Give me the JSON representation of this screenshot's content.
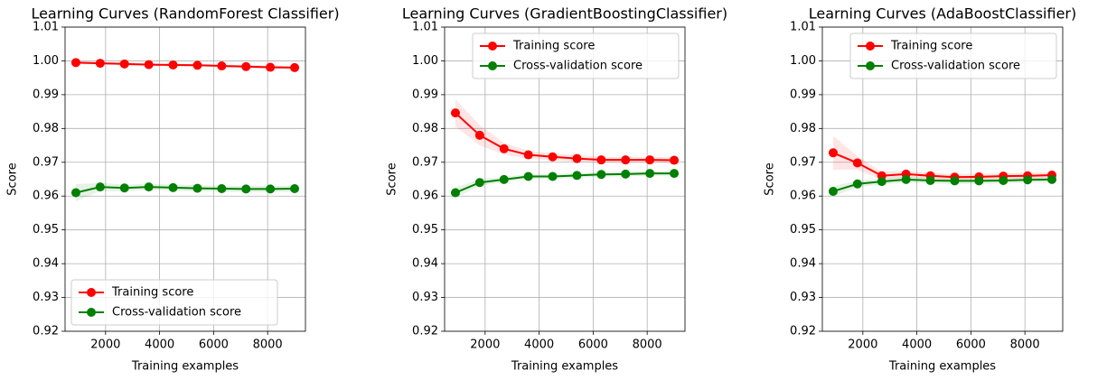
{
  "chart_data": [
    {
      "type": "line",
      "title": "Learning Curves (RandomForest Classifier)",
      "xlabel": "Training examples",
      "ylabel": "Score",
      "x": [
        900,
        1800,
        2700,
        3600,
        4500,
        5400,
        6300,
        7200,
        8100,
        9000
      ],
      "series": [
        {
          "name": "Training score",
          "color": "#ff0000",
          "values": [
            0.9995,
            0.9993,
            0.9991,
            0.9989,
            0.9988,
            0.9987,
            0.9985,
            0.9983,
            0.9981,
            0.998
          ],
          "errors": [
            0.0004,
            0.0004,
            0.0004,
            0.0004,
            0.0004,
            0.0004,
            0.0004,
            0.0005,
            0.0005,
            0.0005
          ]
        },
        {
          "name": "Cross-validation score",
          "color": "#008000",
          "values": [
            0.961,
            0.9627,
            0.9624,
            0.9627,
            0.9625,
            0.9623,
            0.9622,
            0.9621,
            0.9621,
            0.9622
          ],
          "errors": [
            0.0025,
            0.0012,
            0.001,
            0.0009,
            0.0009,
            0.0009,
            0.0009,
            0.0009,
            0.0009,
            0.0009
          ]
        }
      ],
      "xlim": [
        500,
        9400
      ],
      "ylim": [
        0.92,
        1.01
      ],
      "xticks": [
        2000,
        4000,
        6000,
        8000
      ],
      "yticks": [
        0.92,
        0.93,
        0.94,
        0.95,
        0.96,
        0.97,
        0.98,
        0.99,
        {
          "value": 1,
          "label": "1.00"
        },
        1.01
      ],
      "grid": true,
      "legend": "lower left"
    },
    {
      "type": "line",
      "title": "Learning Curves (GradientBoostingClassifier)",
      "xlabel": "Training examples",
      "ylabel": "Score",
      "x": [
        900,
        1800,
        2700,
        3600,
        4500,
        5400,
        6300,
        7200,
        8100,
        9000
      ],
      "series": [
        {
          "name": "Training score",
          "color": "#ff0000",
          "values": [
            0.9846,
            0.978,
            0.974,
            0.9722,
            0.9716,
            0.9711,
            0.9707,
            0.9707,
            0.9707,
            0.9706
          ],
          "errors": [
            0.004,
            0.003,
            0.0017,
            0.0012,
            0.001,
            0.001,
            0.0009,
            0.0009,
            0.0009,
            0.0009
          ]
        },
        {
          "name": "Cross-validation score",
          "color": "#008000",
          "values": [
            0.961,
            0.964,
            0.9649,
            0.9658,
            0.9658,
            0.9661,
            0.9664,
            0.9665,
            0.9667,
            0.9667
          ],
          "errors": [
            0.0015,
            0.001,
            0.0008,
            0.0007,
            0.0007,
            0.0007,
            0.0007,
            0.0007,
            0.0007,
            0.0007
          ]
        }
      ],
      "xlim": [
        500,
        9400
      ],
      "ylim": [
        0.92,
        1.01
      ],
      "xticks": [
        2000,
        4000,
        6000,
        8000
      ],
      "yticks": [
        0.92,
        0.93,
        0.94,
        0.95,
        0.96,
        0.97,
        0.98,
        0.99,
        {
          "value": 1,
          "label": "1.00"
        },
        1.01
      ],
      "grid": true,
      "legend": "upper right"
    },
    {
      "type": "line",
      "title": "Learning Curves (AdaBoostClassifier)",
      "xlabel": "Training examples",
      "ylabel": "Score",
      "x": [
        900,
        1800,
        2700,
        3600,
        4500,
        5400,
        6300,
        7200,
        8100,
        9000
      ],
      "series": [
        {
          "name": "Training score",
          "color": "#ff0000",
          "values": [
            0.9728,
            0.9698,
            0.966,
            0.9665,
            0.966,
            0.9656,
            0.9657,
            0.9659,
            0.966,
            0.9662
          ],
          "errors": [
            0.005,
            0.002,
            0.0012,
            0.001,
            0.001,
            0.0009,
            0.0009,
            0.0009,
            0.0009,
            0.0009
          ]
        },
        {
          "name": "Cross-validation score",
          "color": "#008000",
          "values": [
            0.9614,
            0.9636,
            0.9643,
            0.9649,
            0.9646,
            0.9645,
            0.9645,
            0.9646,
            0.9648,
            0.9649
          ],
          "errors": [
            0.0015,
            0.001,
            0.0009,
            0.0009,
            0.0009,
            0.0009,
            0.0009,
            0.0009,
            0.0009,
            0.0009
          ]
        }
      ],
      "xlim": [
        500,
        9400
      ],
      "ylim": [
        0.92,
        1.01
      ],
      "xticks": [
        2000,
        4000,
        6000,
        8000
      ],
      "yticks": [
        0.92,
        0.93,
        0.94,
        0.95,
        0.96,
        0.97,
        0.98,
        0.99,
        {
          "value": 1,
          "label": "1.00"
        },
        1.01
      ],
      "grid": true,
      "legend": "upper right"
    }
  ]
}
